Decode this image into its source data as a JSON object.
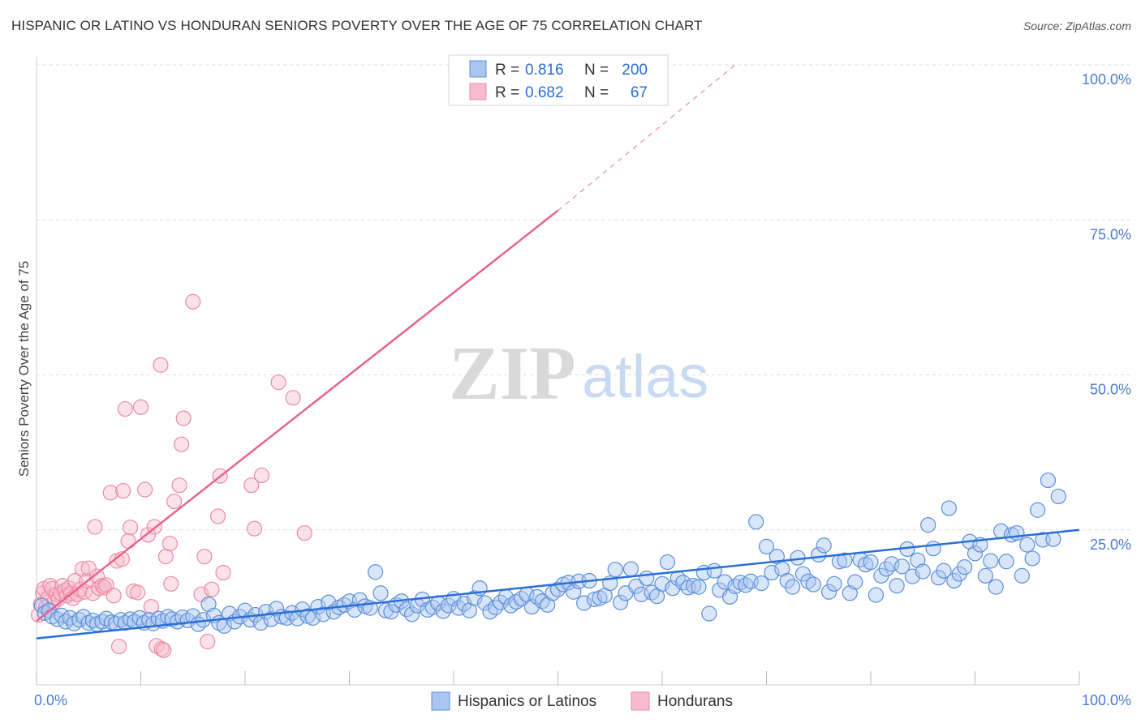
{
  "title": "HISPANIC OR LATINO VS HONDURAN SENIORS POVERTY OVER THE AGE OF 75 CORRELATION CHART",
  "source": "Source: ZipAtlas.com",
  "watermark": {
    "zip": "ZIP",
    "atlas": "atlas"
  },
  "stats": [
    {
      "r_label": "R =",
      "r_value": "0.816",
      "n_label": "N =",
      "n_value": "200"
    },
    {
      "r_label": "R =",
      "r_value": "0.682",
      "n_label": "N =",
      "n_value": "67"
    }
  ],
  "colors": {
    "blue_fill": "#aac6f0",
    "blue_stroke": "#5b8fd9",
    "blue_line": "#2a6fd6",
    "pink_fill": "#f6bccd",
    "pink_stroke": "#ec8aa8",
    "pink_line": "#e8638e",
    "tick_text": "#4a7bd0",
    "grid": "#dddddd"
  },
  "chart_data": {
    "type": "scatter",
    "title": "HISPANIC OR LATINO VS HONDURAN SENIORS POVERTY OVER THE AGE OF 75 CORRELATION CHART",
    "xlabel": "",
    "ylabel": "Seniors Poverty Over the Age of 75",
    "xlim": [
      0,
      100
    ],
    "ylim": [
      0,
      100
    ],
    "x_tick_labels": [
      "0.0%",
      "100.0%"
    ],
    "y_ticks": [
      25,
      50,
      75,
      100
    ],
    "y_tick_labels": [
      "25.0%",
      "50.0%",
      "75.0%",
      "100.0%"
    ],
    "grid": true,
    "legend": {
      "position": "bottom",
      "items": [
        "Hispanics or Latinos",
        "Hondurans"
      ]
    },
    "series": [
      {
        "name": "Hispanics or Latinos",
        "color": "#aac6f0",
        "r": 0.816,
        "n": 200,
        "trend": {
          "x": [
            0,
            100
          ],
          "y": [
            7.5,
            25.0
          ]
        },
        "points": [
          [
            0.5,
            12.8
          ],
          [
            0.8,
            11.6
          ],
          [
            1.2,
            12.0
          ],
          [
            1.5,
            11.0
          ],
          [
            2,
            10.6
          ],
          [
            2.4,
            11.2
          ],
          [
            2.8,
            10.2
          ],
          [
            3.2,
            10.8
          ],
          [
            3.6,
            9.9
          ],
          [
            4.1,
            10.5
          ],
          [
            4.5,
            11.0
          ],
          [
            5,
            10.0
          ],
          [
            5.4,
            10.4
          ],
          [
            5.8,
            9.8
          ],
          [
            6.3,
            10.2
          ],
          [
            6.7,
            10.7
          ],
          [
            7.2,
            10.1
          ],
          [
            7.6,
            9.9
          ],
          [
            8.1,
            10.5
          ],
          [
            8.5,
            10.0
          ],
          [
            9,
            10.6
          ],
          [
            9.4,
            10.2
          ],
          [
            9.9,
            10.8
          ],
          [
            10.3,
            10.0
          ],
          [
            10.8,
            10.5
          ],
          [
            11.2,
            9.9
          ],
          [
            11.7,
            10.7
          ],
          [
            12.1,
            10.3
          ],
          [
            12.6,
            11.0
          ],
          [
            13,
            10.6
          ],
          [
            13.5,
            10.2
          ],
          [
            14,
            10.9
          ],
          [
            14.5,
            10.4
          ],
          [
            15,
            11.1
          ],
          [
            15.5,
            9.8
          ],
          [
            16,
            10.5
          ],
          [
            16.5,
            13.0
          ],
          [
            17,
            11.2
          ],
          [
            17.5,
            10.0
          ],
          [
            18,
            9.5
          ],
          [
            18.5,
            11.5
          ],
          [
            19,
            10.2
          ],
          [
            19.5,
            11.0
          ],
          [
            20,
            12.0
          ],
          [
            20.5,
            10.5
          ],
          [
            21,
            11.3
          ],
          [
            21.5,
            10.0
          ],
          [
            22,
            11.8
          ],
          [
            22.5,
            10.6
          ],
          [
            23,
            12.3
          ],
          [
            23.5,
            11.0
          ],
          [
            24,
            10.8
          ],
          [
            24.5,
            11.6
          ],
          [
            25,
            10.7
          ],
          [
            25.5,
            12.2
          ],
          [
            26,
            11.1
          ],
          [
            26.5,
            10.8
          ],
          [
            27,
            12.6
          ],
          [
            27.5,
            11.4
          ],
          [
            28,
            13.3
          ],
          [
            28.5,
            11.8
          ],
          [
            29,
            12.5
          ],
          [
            29.5,
            12.9
          ],
          [
            30,
            13.5
          ],
          [
            30.5,
            12.1
          ],
          [
            31,
            13.7
          ],
          [
            31.5,
            12.7
          ],
          [
            32,
            12.4
          ],
          [
            32.5,
            18.2
          ],
          [
            33,
            14.8
          ],
          [
            33.5,
            12.0
          ],
          [
            34,
            11.8
          ],
          [
            34.5,
            12.9
          ],
          [
            35,
            13.5
          ],
          [
            35.5,
            12.2
          ],
          [
            36,
            11.4
          ],
          [
            36.5,
            12.8
          ],
          [
            37,
            13.8
          ],
          [
            37.5,
            12.1
          ],
          [
            38,
            12.5
          ],
          [
            38.5,
            13.2
          ],
          [
            39,
            11.9
          ],
          [
            39.5,
            12.8
          ],
          [
            40,
            13.9
          ],
          [
            40.5,
            12.4
          ],
          [
            41,
            13.1
          ],
          [
            41.5,
            12.0
          ],
          [
            42,
            14.0
          ],
          [
            42.5,
            15.6
          ],
          [
            43,
            13.2
          ],
          [
            43.5,
            11.8
          ],
          [
            44,
            12.5
          ],
          [
            44.5,
            13.3
          ],
          [
            45,
            14.2
          ],
          [
            45.5,
            12.8
          ],
          [
            46,
            13.4
          ],
          [
            46.5,
            13.9
          ],
          [
            47,
            14.6
          ],
          [
            47.5,
            12.6
          ],
          [
            48,
            14.2
          ],
          [
            48.5,
            13.5
          ],
          [
            49,
            12.9
          ],
          [
            49.5,
            14.8
          ],
          [
            50,
            15.4
          ],
          [
            50.5,
            16.2
          ],
          [
            51,
            16.5
          ],
          [
            51.5,
            15.0
          ],
          [
            52,
            16.7
          ],
          [
            52.5,
            13.2
          ],
          [
            53,
            16.8
          ],
          [
            53.5,
            13.8
          ],
          [
            54,
            14.0
          ],
          [
            54.5,
            14.4
          ],
          [
            55,
            16.4
          ],
          [
            55.5,
            18.6
          ],
          [
            56,
            13.3
          ],
          [
            56.5,
            14.8
          ],
          [
            57,
            18.7
          ],
          [
            57.5,
            15.9
          ],
          [
            58,
            14.6
          ],
          [
            58.5,
            17.2
          ],
          [
            59,
            14.9
          ],
          [
            59.5,
            14.3
          ],
          [
            60,
            16.3
          ],
          [
            60.5,
            19.8
          ],
          [
            61,
            15.6
          ],
          [
            61.5,
            17.2
          ],
          [
            62,
            16.5
          ],
          [
            62.5,
            15.7
          ],
          [
            63,
            16.0
          ],
          [
            63.5,
            15.8
          ],
          [
            64,
            18.1
          ],
          [
            64.5,
            11.5
          ],
          [
            65,
            18.4
          ],
          [
            65.5,
            15.3
          ],
          [
            66,
            16.6
          ],
          [
            66.5,
            14.2
          ],
          [
            67,
            15.9
          ],
          [
            67.5,
            16.5
          ],
          [
            68,
            16.1
          ],
          [
            68.5,
            16.7
          ],
          [
            69,
            26.3
          ],
          [
            69.5,
            16.4
          ],
          [
            70,
            22.3
          ],
          [
            70.5,
            18.1
          ],
          [
            71,
            20.7
          ],
          [
            71.5,
            18.7
          ],
          [
            72,
            16.8
          ],
          [
            72.5,
            15.8
          ],
          [
            73,
            20.5
          ],
          [
            73.5,
            17.9
          ],
          [
            74,
            16.7
          ],
          [
            74.5,
            16.2
          ],
          [
            75,
            21.0
          ],
          [
            75.5,
            22.5
          ],
          [
            76,
            15.0
          ],
          [
            76.5,
            16.3
          ],
          [
            77,
            19.9
          ],
          [
            77.5,
            20.1
          ],
          [
            78,
            14.8
          ],
          [
            78.5,
            16.6
          ],
          [
            79,
            20.2
          ],
          [
            79.5,
            19.4
          ],
          [
            80,
            19.8
          ],
          [
            80.5,
            14.5
          ],
          [
            81,
            17.6
          ],
          [
            81.5,
            18.7
          ],
          [
            82,
            19.5
          ],
          [
            82.5,
            16.0
          ],
          [
            83,
            19.1
          ],
          [
            83.5,
            21.9
          ],
          [
            84,
            17.5
          ],
          [
            84.5,
            20.1
          ],
          [
            85,
            18.3
          ],
          [
            85.5,
            25.8
          ],
          [
            86,
            22.0
          ],
          [
            86.5,
            17.3
          ],
          [
            87,
            18.4
          ],
          [
            87.5,
            28.5
          ],
          [
            88,
            16.8
          ],
          [
            88.5,
            17.9
          ],
          [
            89,
            19.0
          ],
          [
            89.5,
            23.1
          ],
          [
            90,
            21.2
          ],
          [
            90.5,
            22.6
          ],
          [
            91,
            17.6
          ],
          [
            91.5,
            20.0
          ],
          [
            92,
            15.8
          ],
          [
            92.5,
            24.8
          ],
          [
            93,
            19.9
          ],
          [
            93.5,
            24.2
          ],
          [
            94,
            24.5
          ],
          [
            94.5,
            17.6
          ],
          [
            95,
            22.6
          ],
          [
            95.5,
            20.4
          ],
          [
            96,
            28.2
          ],
          [
            96.5,
            23.4
          ],
          [
            97,
            33.0
          ],
          [
            97.5,
            23.5
          ],
          [
            98,
            30.4
          ]
        ]
      },
      {
        "name": "Hondurans",
        "color": "#f6bccd",
        "r": 0.682,
        "n": 67,
        "trend": {
          "x": [
            0,
            50
          ],
          "y": [
            10.3,
            76.5
          ]
        },
        "trend_extension": {
          "x": [
            50,
            67
          ],
          "y": [
            76.5,
            100
          ]
        },
        "points": [
          [
            0.2,
            11.3
          ],
          [
            0.4,
            13.0
          ],
          [
            0.6,
            14.8
          ],
          [
            0.7,
            15.5
          ],
          [
            0.9,
            12.5
          ],
          [
            1.1,
            14.0
          ],
          [
            1.3,
            16.0
          ],
          [
            1.5,
            15.5
          ],
          [
            1.7,
            13.4
          ],
          [
            1.9,
            14.6
          ],
          [
            2.1,
            13.9
          ],
          [
            2.3,
            14.8
          ],
          [
            2.5,
            16.0
          ],
          [
            2.7,
            15.2
          ],
          [
            2.9,
            14.4
          ],
          [
            3.1,
            15.6
          ],
          [
            3.3,
            14.8
          ],
          [
            3.5,
            14.0
          ],
          [
            3.7,
            16.8
          ],
          [
            3.9,
            14.6
          ],
          [
            4.2,
            15.4
          ],
          [
            4.4,
            18.7
          ],
          [
            4.6,
            15.0
          ],
          [
            4.8,
            16.8
          ],
          [
            5,
            18.8
          ],
          [
            5.4,
            14.8
          ],
          [
            5.6,
            25.5
          ],
          [
            5.8,
            17.5
          ],
          [
            6,
            15.6
          ],
          [
            6.3,
            16.0
          ],
          [
            6.5,
            15.7
          ],
          [
            6.7,
            16.1
          ],
          [
            7.1,
            31.0
          ],
          [
            7.4,
            14.4
          ],
          [
            7.7,
            20.0
          ],
          [
            7.9,
            6.2
          ],
          [
            8.2,
            20.3
          ],
          [
            8.3,
            31.3
          ],
          [
            8.5,
            44.5
          ],
          [
            8.8,
            23.2
          ],
          [
            9,
            25.4
          ],
          [
            9.3,
            15.1
          ],
          [
            9.7,
            14.9
          ],
          [
            10,
            44.8
          ],
          [
            10.4,
            31.5
          ],
          [
            10.7,
            24.2
          ],
          [
            11,
            12.6
          ],
          [
            11.3,
            25.5
          ],
          [
            11.5,
            6.3
          ],
          [
            11.9,
            51.6
          ],
          [
            12,
            5.8
          ],
          [
            12.2,
            5.6
          ],
          [
            12.4,
            20.7
          ],
          [
            12.8,
            22.8
          ],
          [
            12.9,
            16.3
          ],
          [
            13.2,
            29.6
          ],
          [
            13.7,
            32.2
          ],
          [
            13.9,
            38.8
          ],
          [
            14.1,
            43.0
          ],
          [
            15,
            61.8
          ],
          [
            15.8,
            14.6
          ],
          [
            16.1,
            20.7
          ],
          [
            16.4,
            7.0
          ],
          [
            16.8,
            15.4
          ],
          [
            17.4,
            27.2
          ],
          [
            17.6,
            33.7
          ],
          [
            17.9,
            18.1
          ]
        ],
        "extra_points": [
          [
            20.6,
            32.2
          ],
          [
            20.9,
            25.2
          ],
          [
            21.6,
            33.8
          ],
          [
            23.2,
            48.8
          ],
          [
            25.7,
            24.5
          ],
          [
            24.6,
            46.3
          ]
        ]
      }
    ]
  }
}
